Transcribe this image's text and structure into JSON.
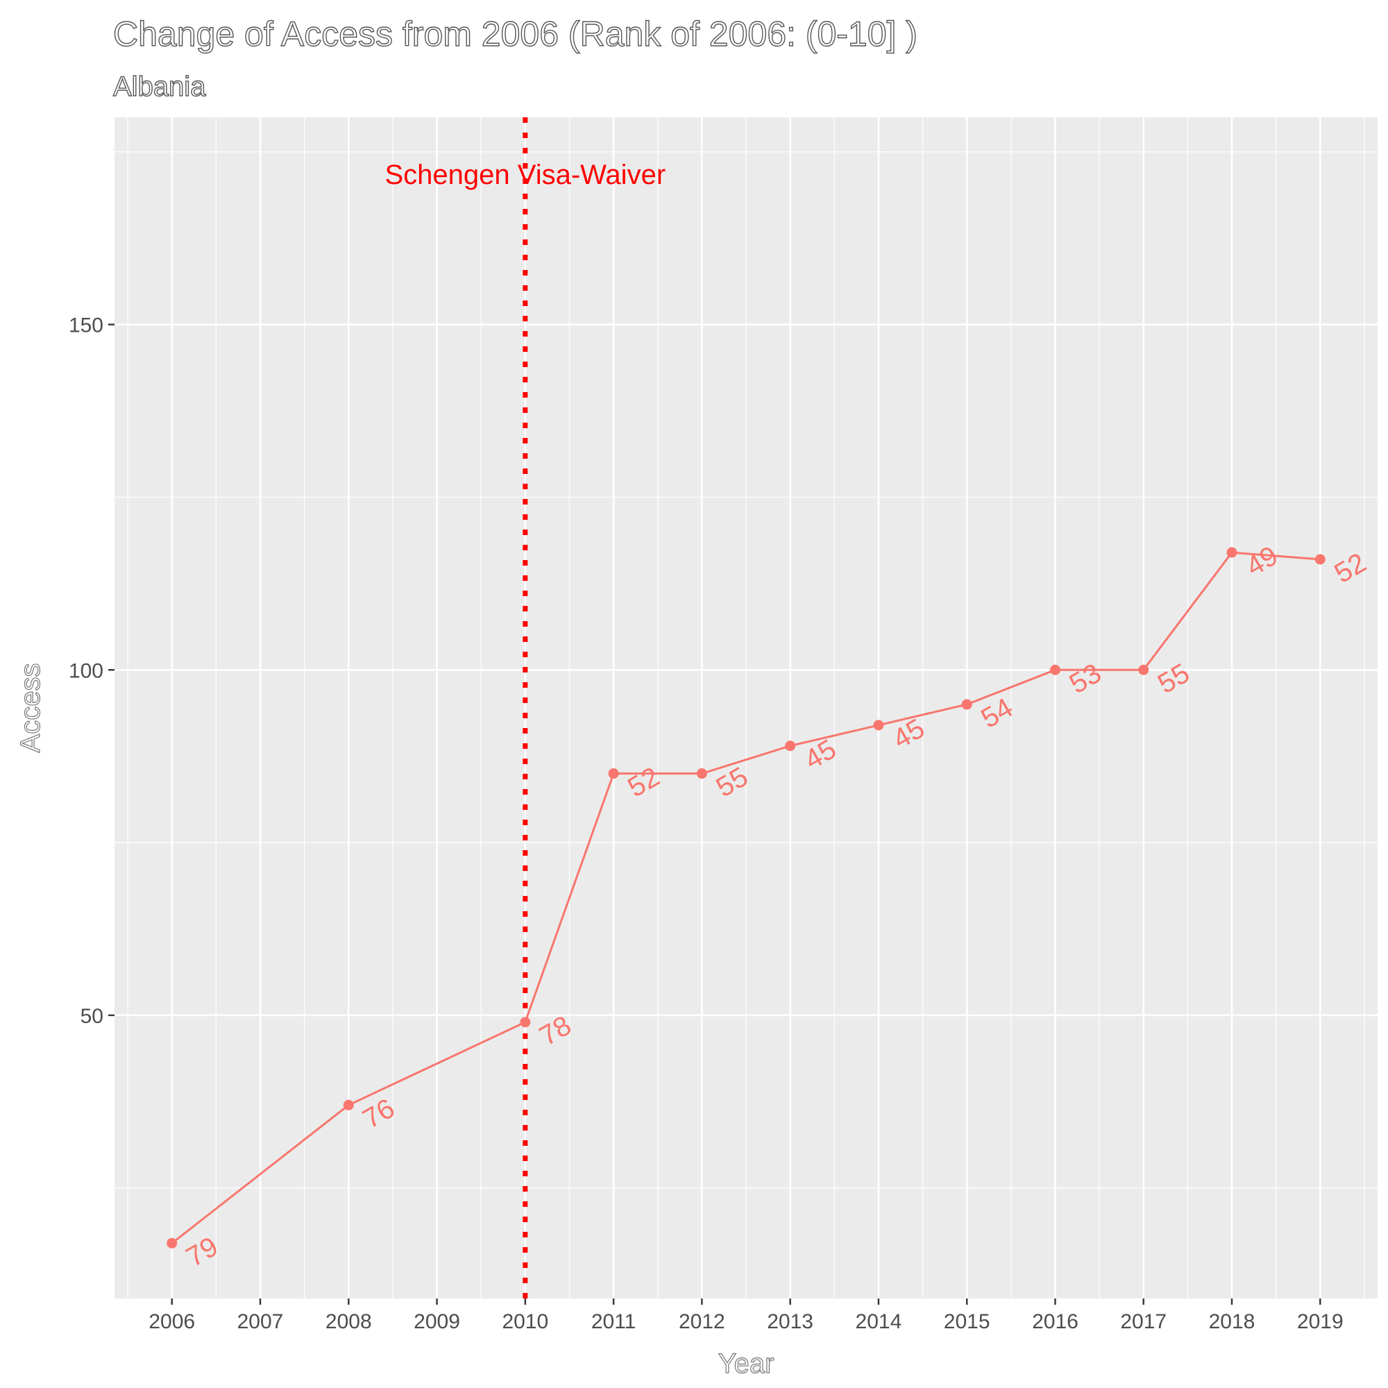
{
  "chart_data": {
    "type": "line",
    "title": "Change of Access from 2006 (Rank of 2006: (0-10] )",
    "subtitle": "Albania",
    "xlabel": "Year",
    "ylabel": "Access",
    "x": [
      2006,
      2008,
      2010,
      2011,
      2012,
      2013,
      2014,
      2015,
      2016,
      2017,
      2018,
      2019
    ],
    "series": [
      {
        "name": "Albania",
        "color": "#F8766D",
        "values": [
          17,
          37,
          49,
          85,
          85,
          89,
          92,
          95,
          100,
          100,
          117,
          116
        ],
        "labels": [
          "79",
          "76",
          "78",
          "52",
          "55",
          "45",
          "45",
          "54",
          "53",
          "55",
          "49",
          "52"
        ]
      }
    ],
    "x_ticks": [
      "2006",
      "2007",
      "2008",
      "2009",
      "2010",
      "2011",
      "2012",
      "2013",
      "2014",
      "2015",
      "2016",
      "2017",
      "2018",
      "2019"
    ],
    "y_ticks": [
      "50",
      "100",
      "150"
    ],
    "ylim": [
      9,
      180
    ],
    "xlim": [
      2005.35,
      2019.65
    ],
    "annotation": {
      "text": "Schengen Visa-Waiver",
      "x": 2010,
      "color": "#FF0000"
    },
    "panel_background": "#EBEBEB",
    "grid_color": "#FFFFFF",
    "grid": true,
    "legend": "none"
  }
}
